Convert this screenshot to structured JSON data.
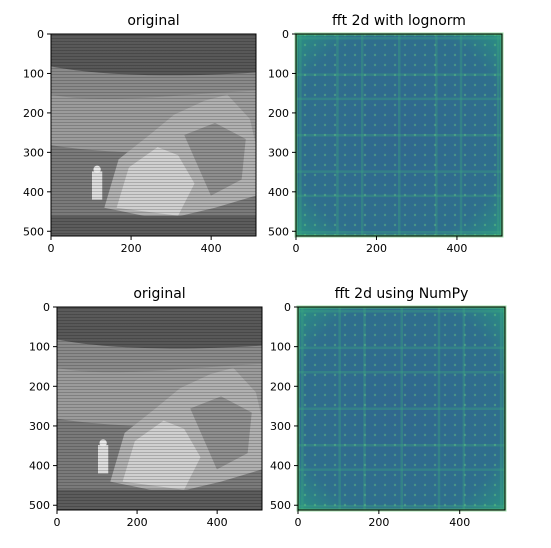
{
  "chart_data": [
    {
      "type": "heatmap",
      "image": "grayscale-lunar-surface-photo-astronaut-boulder",
      "colormap": "gray",
      "title": "original",
      "xlim": [
        0,
        512
      ],
      "ylim": [
        512,
        0
      ],
      "x_ticks": [
        0,
        200,
        400
      ],
      "y_ticks": [
        0,
        100,
        200,
        300,
        400,
        500
      ]
    },
    {
      "type": "heatmap",
      "image": "fft-2d-magnitude-lognorm",
      "colormap": "viridis",
      "title": "fft 2d with lognorm",
      "xlim": [
        0,
        512
      ],
      "ylim": [
        512,
        0
      ],
      "x_ticks": [
        0,
        200,
        400
      ],
      "y_ticks": [
        0,
        100,
        200,
        300,
        400,
        500
      ]
    },
    {
      "type": "heatmap",
      "image": "grayscale-lunar-surface-photo-astronaut-boulder",
      "colormap": "gray",
      "title": "original",
      "xlim": [
        0,
        512
      ],
      "ylim": [
        512,
        0
      ],
      "x_ticks": [
        0,
        200,
        400
      ],
      "y_ticks": [
        0,
        100,
        200,
        300,
        400,
        500
      ]
    },
    {
      "type": "heatmap",
      "image": "fft-2d-magnitude-numpy",
      "colormap": "viridis",
      "title": "fft 2d using NumPy",
      "xlim": [
        0,
        512
      ],
      "ylim": [
        512,
        0
      ],
      "x_ticks": [
        0,
        200,
        400
      ],
      "y_ticks": [
        0,
        100,
        200,
        300,
        400,
        500
      ]
    }
  ]
}
